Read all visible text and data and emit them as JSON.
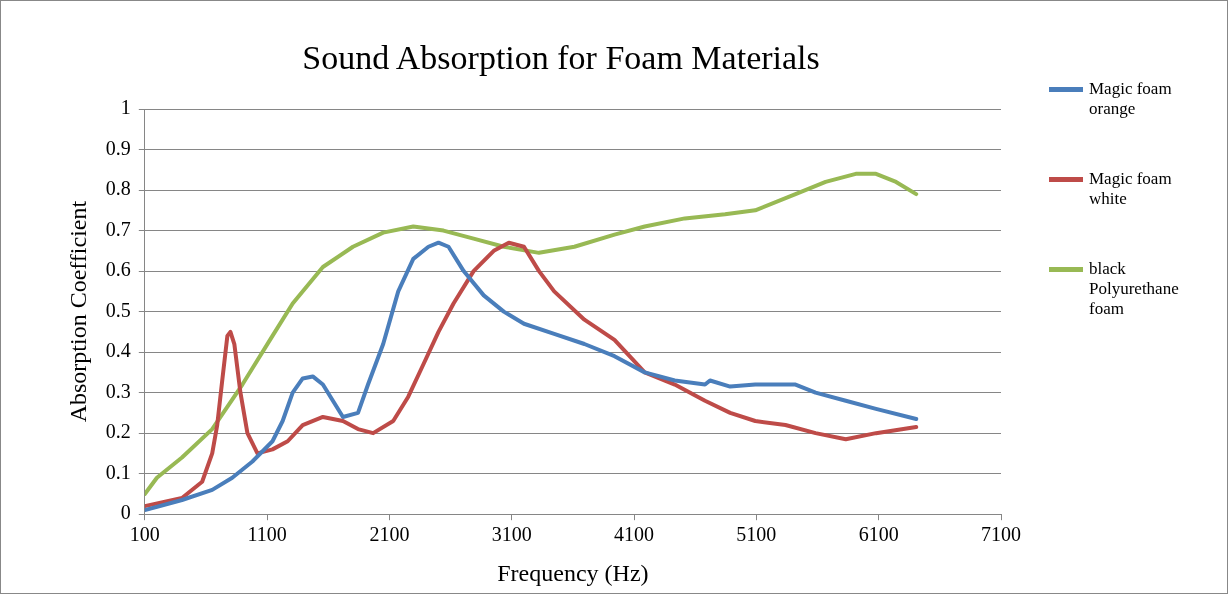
{
  "chart_data": {
    "type": "line",
    "title": "Sound Absorption for Foam Materials",
    "xlabel": "Frequency (Hz)",
    "ylabel": "Absorption Coefficient",
    "xlim": [
      100,
      7100
    ],
    "xticks": [
      100,
      1100,
      2100,
      3100,
      4100,
      5100,
      6100,
      7100
    ],
    "ylim": [
      0,
      1
    ],
    "yticks": [
      0,
      0.1,
      0.2,
      0.3,
      0.4,
      0.5,
      0.6,
      0.7,
      0.8,
      0.9,
      1
    ],
    "grid": "y",
    "legend": "right",
    "marker": "none",
    "line_style": "solid",
    "series": [
      {
        "name": "Magic foam orange",
        "color": "#4a7ebb",
        "x": [
          100,
          404,
          651,
          815,
          980,
          1144,
          1227,
          1309,
          1391,
          1473,
          1556,
          1638,
          1720,
          1843,
          1925,
          2049,
          2172,
          2295,
          2419,
          2501,
          2583,
          2707,
          2871,
          3035,
          3200,
          3447,
          3694,
          3940,
          4187,
          4433,
          4680,
          4721,
          4886,
          5091,
          5256,
          5420,
          5584,
          5831,
          6078,
          6407
        ],
        "values": [
          0.01,
          0.035,
          0.06,
          0.09,
          0.13,
          0.18,
          0.23,
          0.3,
          0.335,
          0.34,
          0.32,
          0.28,
          0.24,
          0.25,
          0.32,
          0.42,
          0.55,
          0.63,
          0.66,
          0.67,
          0.66,
          0.6,
          0.54,
          0.5,
          0.47,
          0.445,
          0.42,
          0.39,
          0.35,
          0.33,
          0.32,
          0.33,
          0.315,
          0.32,
          0.32,
          0.32,
          0.3,
          0.28,
          0.26,
          0.235
        ]
      },
      {
        "name": "Magic foam white",
        "color": "#be4b48",
        "x": [
          100,
          404,
          569,
          651,
          692,
          733,
          775,
          800,
          832,
          882,
          939,
          1021,
          1144,
          1268,
          1391,
          1556,
          1720,
          1843,
          1967,
          2131,
          2254,
          2378,
          2501,
          2624,
          2788,
          2953,
          3076,
          3200,
          3323,
          3447,
          3694,
          3940,
          4187,
          4433,
          4680,
          4886,
          5091,
          5338,
          5584,
          5831,
          6078,
          6407
        ],
        "values": [
          0.02,
          0.04,
          0.08,
          0.15,
          0.22,
          0.33,
          0.44,
          0.45,
          0.42,
          0.3,
          0.2,
          0.15,
          0.16,
          0.18,
          0.22,
          0.24,
          0.23,
          0.21,
          0.2,
          0.23,
          0.29,
          0.37,
          0.45,
          0.52,
          0.6,
          0.65,
          0.67,
          0.66,
          0.6,
          0.55,
          0.48,
          0.43,
          0.35,
          0.32,
          0.28,
          0.25,
          0.23,
          0.22,
          0.2,
          0.185,
          0.2,
          0.215
        ]
      },
      {
        "name": "black Polyurethane foam",
        "color": "#98b954",
        "x": [
          100,
          199,
          404,
          651,
          898,
          1144,
          1309,
          1556,
          1802,
          2049,
          2295,
          2542,
          2788,
          3035,
          3323,
          3612,
          3940,
          4187,
          4515,
          4844,
          5091,
          5420,
          5666,
          5913,
          6078,
          6242,
          6407
        ],
        "values": [
          0.05,
          0.09,
          0.14,
          0.21,
          0.32,
          0.44,
          0.52,
          0.61,
          0.66,
          0.695,
          0.71,
          0.7,
          0.68,
          0.66,
          0.645,
          0.66,
          0.69,
          0.71,
          0.73,
          0.74,
          0.75,
          0.79,
          0.82,
          0.84,
          0.84,
          0.82,
          0.79
        ]
      }
    ]
  }
}
